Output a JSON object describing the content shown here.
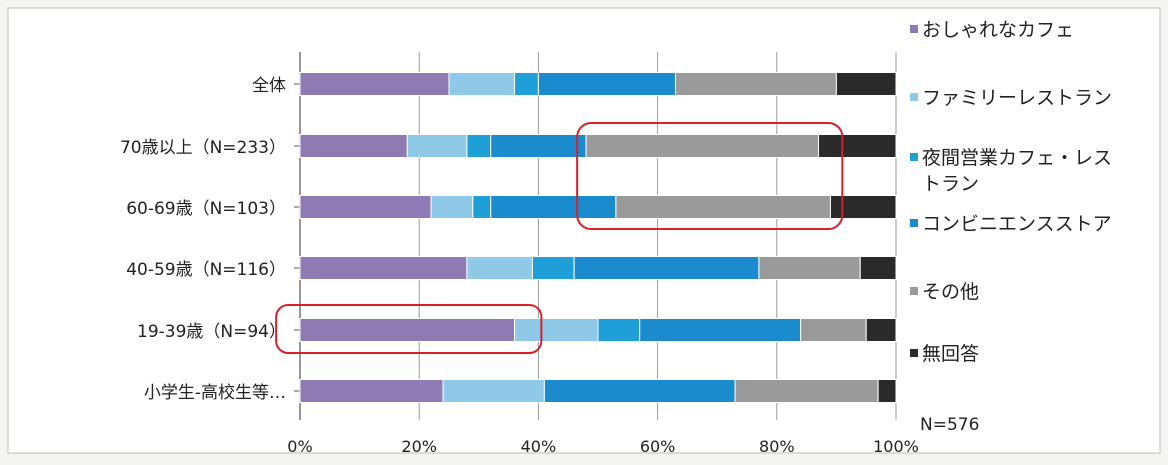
{
  "chart_data": {
    "type": "bar",
    "orientation": "horizontal",
    "stacked": true,
    "percent": true,
    "categories": [
      "全体",
      "70歳以上（N=233）",
      "60-69歳（N=103）",
      "40-59歳（N=116）",
      "19-39歳（N=94）",
      "小学生-高校生等…"
    ],
    "series": [
      {
        "name": "おしゃれなカフェ",
        "color": "#8f7bb3",
        "values": [
          25,
          18,
          22,
          28,
          36,
          24
        ]
      },
      {
        "name": "ファミリーレストラン",
        "color": "#8ecae8",
        "values": [
          11,
          10,
          7,
          11,
          14,
          17
        ]
      },
      {
        "name": "夜間営業カフェ・レストラン",
        "color": "#1e9fd8",
        "values": [
          4,
          4,
          3,
          7,
          7,
          0
        ]
      },
      {
        "name": "コンビニエンスストア",
        "color": "#1a8ccd",
        "values": [
          23,
          16,
          21,
          31,
          27,
          32
        ]
      },
      {
        "name": "その他",
        "color": "#9a9a9a",
        "values": [
          27,
          39,
          36,
          17,
          11,
          24
        ]
      },
      {
        "name": "無回答",
        "color": "#2a2a2a",
        "values": [
          10,
          13,
          11,
          6,
          5,
          3
        ]
      }
    ],
    "xlim": [
      0,
      100
    ],
    "xticks": [
      "0%",
      "20%",
      "40%",
      "60%",
      "80%",
      "100%"
    ],
    "grid": true,
    "legend_position": "right",
    "highlight_color": "#d8202a",
    "annotation": "N=576"
  }
}
